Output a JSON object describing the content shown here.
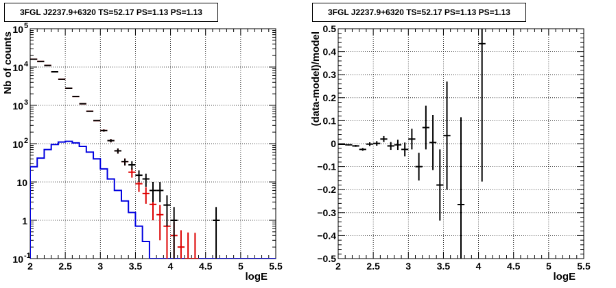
{
  "chart_data": [
    {
      "type": "line",
      "title": "3FGL J2237.9+6320 TS=52.17 PS=1.13 PS=1.13",
      "xlabel": "logE",
      "ylabel": "Nb of counts",
      "xlim": [
        2,
        5.5
      ],
      "ylim": [
        0.1,
        100000
      ],
      "yscale": "log",
      "grid": true,
      "x_ticks": [
        "2",
        "2.5",
        "3",
        "3.5",
        "4",
        "4.5",
        "5",
        "5.5"
      ],
      "y_ticks": [
        {
          "label": "10",
          "exp": "-1",
          "v": 0.1
        },
        {
          "label": "1",
          "exp": "",
          "v": 1
        },
        {
          "label": "10",
          "exp": "",
          "v": 10
        },
        {
          "label": "10",
          "exp": "2",
          "v": 100
        },
        {
          "label": "10",
          "exp": "3",
          "v": 1000
        },
        {
          "label": "10",
          "exp": "4",
          "v": 10000
        },
        {
          "label": "10",
          "exp": "5",
          "v": 100000
        }
      ],
      "series": [
        {
          "color": "#0000e0",
          "style": "histogram",
          "bin_width": 0.1,
          "x": [
            2.05,
            2.15,
            2.25,
            2.35,
            2.45,
            2.55,
            2.65,
            2.75,
            2.85,
            2.95,
            3.05,
            3.15,
            3.25,
            3.35,
            3.45,
            3.55,
            3.65,
            3.75,
            3.85,
            3.95,
            4.05,
            4.15,
            4.25,
            4.35,
            4.45,
            4.55,
            4.65,
            4.75,
            4.85,
            4.95,
            5.05,
            5.15,
            5.25,
            5.35,
            5.45
          ],
          "y": [
            25,
            42,
            70,
            95,
            110,
            115,
            105,
            85,
            60,
            40,
            22,
            12,
            6,
            3.2,
            1.6,
            0.7,
            0.28,
            0.1,
            0.1,
            0.1,
            0.1,
            0.1,
            0.1,
            0.1,
            0.1,
            0.1,
            0.1,
            0.1,
            0.1,
            0.1,
            0.1,
            0.1,
            0.1,
            0.1,
            0.1
          ]
        },
        {
          "color": "#dd0000",
          "style": "points",
          "bin_width": 0.1,
          "x": [
            2.05,
            2.15,
            2.25,
            2.35,
            2.45,
            2.55,
            2.65,
            2.75,
            2.85,
            2.95,
            3.05,
            3.15,
            3.25,
            3.35,
            3.45,
            3.55,
            3.65,
            3.75,
            3.85,
            3.95,
            4.05,
            4.15,
            4.25,
            4.35
          ],
          "y": [
            16000,
            14000,
            11000,
            7500,
            4800,
            2800,
            1700,
            1100,
            700,
            400,
            220,
            120,
            65,
            34,
            18,
            9,
            5,
            2.6,
            1.4,
            0.7,
            0.4,
            0.2,
            0.1,
            0.1
          ],
          "err_lo": [
            0,
            0,
            0,
            0,
            0,
            0,
            0,
            0,
            0,
            0,
            15,
            12,
            10,
            7,
            5,
            3.5,
            2.3,
            1.6,
            1.1,
            0.6,
            0.38,
            0.19,
            0.09,
            0.09
          ],
          "err_hi": [
            0,
            0,
            0,
            0,
            0,
            0,
            0,
            0,
            0,
            0,
            15,
            12,
            10,
            7,
            5,
            3.5,
            2.3,
            1.6,
            1.1,
            0.8,
            0.5,
            0.35,
            0.38,
            0.37
          ]
        },
        {
          "color": "#000000",
          "style": "points",
          "bin_width": 0.1,
          "x": [
            2.05,
            2.15,
            2.25,
            2.35,
            2.45,
            2.55,
            2.65,
            2.75,
            2.85,
            2.95,
            3.05,
            3.15,
            3.25,
            3.35,
            3.45,
            3.55,
            3.65,
            3.75,
            3.85,
            3.95,
            4.05,
            4.65
          ],
          "y": [
            16000,
            14000,
            11000,
            7500,
            4800,
            2800,
            1700,
            1100,
            700,
            400,
            220,
            120,
            65,
            34,
            28,
            15,
            12,
            6,
            6,
            2.5,
            1,
            1
          ],
          "err_lo": [
            0,
            0,
            0,
            0,
            0,
            0,
            0,
            0,
            0,
            0,
            15,
            12,
            10,
            7,
            7,
            5,
            4.5,
            3,
            3,
            1.8,
            0.9,
            0.9
          ],
          "err_hi": [
            0,
            0,
            0,
            0,
            0,
            0,
            0,
            0,
            0,
            0,
            15,
            12,
            10,
            7,
            7,
            5,
            4.5,
            4,
            4,
            2,
            1.2,
            1.2
          ]
        }
      ]
    },
    {
      "type": "scatter",
      "title": "3FGL J2237.9+6320 TS=52.17 PS=1.13 PS=1.13",
      "xlabel": "logE",
      "ylabel": "(data-model)/model",
      "xlim": [
        2,
        5.5
      ],
      "ylim": [
        -0.5,
        0.5
      ],
      "grid": true,
      "x_ticks": [
        "2",
        "2.5",
        "3",
        "3.5",
        "4",
        "4.5",
        "5",
        "5.5"
      ],
      "y_ticks": [
        "−0.5",
        "−0.4",
        "−0.3",
        "−0.2",
        "−0.1",
        "0",
        "0.1",
        "0.2",
        "0.3",
        "0.4",
        "0.5"
      ],
      "series": [
        {
          "color": "#000000",
          "bin_width": 0.1,
          "x": [
            2.05,
            2.15,
            2.25,
            2.35,
            2.45,
            2.55,
            2.65,
            2.75,
            2.85,
            2.95,
            3.05,
            3.15,
            3.25,
            3.35,
            3.45,
            3.55,
            3.75,
            4.05
          ],
          "y": [
            -0.003,
            -0.005,
            -0.01,
            -0.025,
            -0.002,
            0.001,
            0.02,
            -0.01,
            -0.005,
            -0.025,
            0.02,
            -0.1,
            0.07,
            0.005,
            -0.18,
            0.035,
            -0.265,
            0.435
          ],
          "err": [
            0.002,
            0.003,
            0.004,
            0.006,
            0.008,
            0.01,
            0.013,
            0.017,
            0.022,
            0.03,
            0.045,
            0.06,
            0.095,
            0.12,
            0.155,
            0.235,
            0.38,
            0.6
          ]
        }
      ]
    }
  ]
}
